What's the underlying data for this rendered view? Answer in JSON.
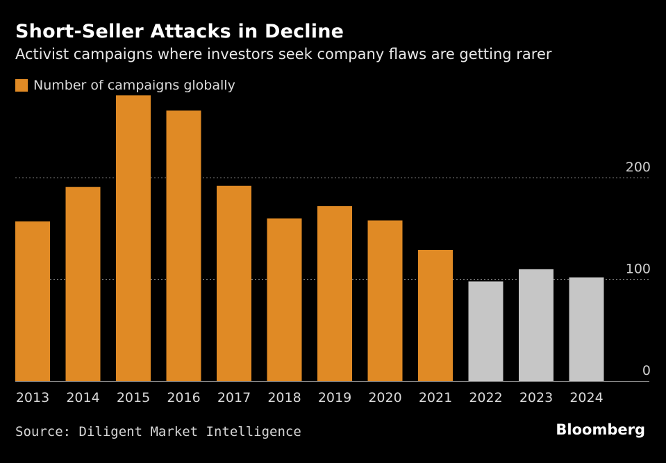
{
  "header": {
    "title": "Short-Seller Attacks in Decline",
    "subtitle": "Activist campaigns where investors seek company flaws are getting rarer"
  },
  "legend": {
    "label": "Number of campaigns globally"
  },
  "footer": {
    "source": "Source: Diligent Market Intelligence",
    "brand": "Bloomberg"
  },
  "colors": {
    "primary": "#e08a25",
    "secondary": "#c6c6c6",
    "grid": "#7a7a7a",
    "axis": "#8c8c8c"
  },
  "chart_data": {
    "type": "bar",
    "title": "Short-Seller Attacks in Decline",
    "subtitle": "Activist campaigns where investors seek company flaws are getting rarer",
    "categories": [
      "2013",
      "2014",
      "2015",
      "2016",
      "2017",
      "2018",
      "2019",
      "2020",
      "2021",
      "2022",
      "2023",
      "2024"
    ],
    "series": [
      {
        "name": "Number of campaigns globally",
        "values": [
          157,
          191,
          281,
          266,
          192,
          160,
          172,
          158,
          129,
          98,
          110,
          102
        ]
      }
    ],
    "highlight_from_category": "2022",
    "ylim": [
      0,
      280
    ],
    "yticks": [
      0,
      100,
      200
    ],
    "ytick_labels": [
      "0",
      "100",
      "200"
    ],
    "grid": true,
    "legend_position": "top-left",
    "xlabel": "",
    "ylabel": ""
  }
}
